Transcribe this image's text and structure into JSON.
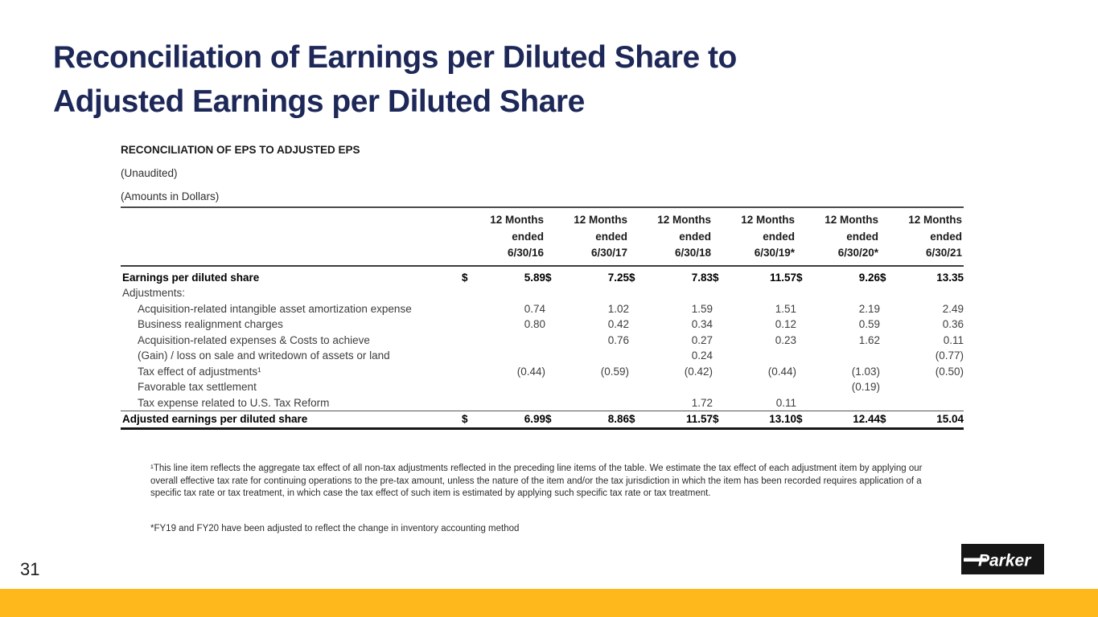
{
  "slide": {
    "title_line1": "Reconciliation of Earnings per Diluted Share to",
    "title_line2": "Adjusted Earnings per Diluted Share",
    "page_number": "31",
    "title_color": "#1d2858",
    "accent_color": "#FFB81C"
  },
  "table": {
    "title": "RECONCILIATION OF EPS TO ADJUSTED EPS",
    "subtitle_unaudited": "(Unaudited)",
    "subtitle_amounts": "(Amounts in Dollars)",
    "currency_symbol": "$",
    "columns": [
      {
        "line1": "12 Months",
        "line2": "ended",
        "line3": "6/30/16"
      },
      {
        "line1": "12 Months",
        "line2": "ended",
        "line3": "6/30/17"
      },
      {
        "line1": "12 Months",
        "line2": "ended",
        "line3": "6/30/18"
      },
      {
        "line1": "12 Months",
        "line2": "ended",
        "line3": "6/30/19*"
      },
      {
        "line1": "12 Months",
        "line2": "ended",
        "line3": "6/30/20*"
      },
      {
        "line1": "12 Months",
        "line2": "ended",
        "line3": "6/30/21"
      }
    ],
    "rows": [
      {
        "name": "row-earnings-per-diluted-share",
        "label": "Earnings per diluted share",
        "bold": true,
        "dollar": true,
        "indent": 0,
        "values": [
          "5.89",
          "7.25",
          "7.83",
          "11.57",
          "9.26",
          "13.35"
        ]
      },
      {
        "name": "row-adjustments-heading",
        "label": "Adjustments:",
        "bold": false,
        "dollar": false,
        "indent": 0,
        "values": [
          "",
          "",
          "",
          "",
          "",
          ""
        ]
      },
      {
        "name": "row-intangible-amortization",
        "label": "Acquisition-related intangible asset amortization expense",
        "bold": false,
        "dollar": false,
        "indent": 1,
        "values": [
          "0.74",
          "1.02",
          "1.59",
          "1.51",
          "2.19",
          "2.49"
        ]
      },
      {
        "name": "row-business-realignment",
        "label": "Business realignment charges",
        "bold": false,
        "dollar": false,
        "indent": 1,
        "values": [
          "0.80",
          "0.42",
          "0.34",
          "0.12",
          "0.59",
          "0.36"
        ]
      },
      {
        "name": "row-acquisition-expenses",
        "label": "Acquisition-related expenses & Costs to achieve",
        "bold": false,
        "dollar": false,
        "indent": 1,
        "values": [
          "",
          "0.76",
          "0.27",
          "0.23",
          "1.62",
          "0.11"
        ]
      },
      {
        "name": "row-gain-loss-writedown",
        "label": "(Gain) / loss on sale and writedown of assets or land",
        "bold": false,
        "dollar": false,
        "indent": 1,
        "values": [
          "",
          "",
          "0.24",
          "",
          "",
          "(0.77)"
        ]
      },
      {
        "name": "row-tax-effect",
        "label": "Tax effect of adjustments¹",
        "bold": false,
        "dollar": false,
        "indent": 1,
        "values": [
          "(0.44)",
          "(0.59)",
          "(0.42)",
          "(0.44)",
          "(1.03)",
          "(0.50)"
        ]
      },
      {
        "name": "row-favorable-tax-settlement",
        "label": "Favorable tax settlement",
        "bold": false,
        "dollar": false,
        "indent": 1,
        "values": [
          "",
          "",
          "",
          "",
          "(0.19)",
          ""
        ]
      },
      {
        "name": "row-tax-reform",
        "label": "Tax expense related to U.S. Tax Reform",
        "bold": false,
        "dollar": false,
        "indent": 1,
        "values": [
          "",
          "",
          "1.72",
          "0.11",
          "",
          ""
        ]
      },
      {
        "name": "row-adjusted-earnings",
        "label": "Adjusted earnings per diluted share",
        "bold": true,
        "dollar": true,
        "indent": 0,
        "total": true,
        "values": [
          "6.99",
          "8.86",
          "11.57",
          "13.10",
          "12.44",
          "15.04"
        ]
      }
    ]
  },
  "footnotes": {
    "tax_effect": "¹This line item reflects the aggregate tax effect of all non-tax adjustments reflected in the preceding line items of the table. We estimate the tax effect of each adjustment item by applying our overall effective tax rate for continuing operations to the pre-tax amount, unless the nature of the item and/or the tax jurisdiction in which the item has been recorded requires application of a specific tax rate or tax treatment, in which case the tax effect of such item is estimated by applying such specific tax rate or tax treatment.",
    "inventory_method": "*FY19 and FY20 have been adjusted to reflect the change in inventory accounting method"
  },
  "logo": {
    "text": "Parker"
  }
}
